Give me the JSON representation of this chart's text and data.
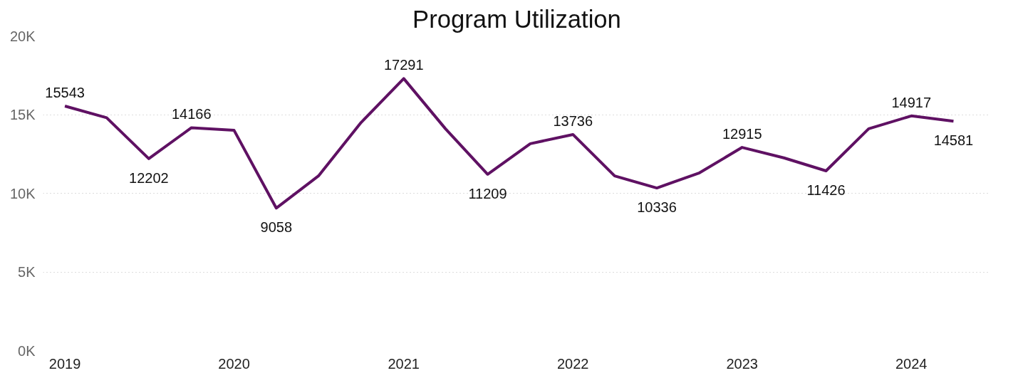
{
  "chart_data": {
    "type": "line",
    "title": "Program Utilization",
    "x": [
      "2019-01",
      "2019-04",
      "2019-07",
      "2019-10",
      "2020-01",
      "2020-04",
      "2020-07",
      "2020-10",
      "2021-01",
      "2021-04",
      "2021-07",
      "2021-10",
      "2022-01",
      "2022-04",
      "2022-07",
      "2022-10",
      "2023-01",
      "2023-04",
      "2023-07",
      "2023-10",
      "2024-01",
      "2024-04"
    ],
    "series": [
      {
        "color": "#5f1163",
        "values": [
          15543,
          14800,
          12202,
          14166,
          14000,
          9058,
          11100,
          14500,
          17291,
          14100,
          11209,
          13150,
          13736,
          11100,
          10336,
          11300,
          12915,
          12250,
          11426,
          14100,
          14917,
          14581
        ],
        "value_labels": [
          "15543",
          null,
          "12202",
          "14166",
          null,
          "9058",
          null,
          null,
          "17291",
          null,
          "11209",
          null,
          "13736",
          null,
          "10336",
          null,
          "12915",
          null,
          "11426",
          null,
          "14917",
          "14581"
        ]
      }
    ],
    "ylim": [
      0,
      20000
    ],
    "yticks": [
      {
        "value": 0,
        "label": "0K"
      },
      {
        "value": 5000,
        "label": "5K"
      },
      {
        "value": 10000,
        "label": "10K"
      },
      {
        "value": 15000,
        "label": "15K"
      },
      {
        "value": 20000,
        "label": "20K"
      }
    ],
    "xlim": [
      "2018-11-15",
      "2024-06-20"
    ],
    "xticks": [
      "2019",
      "2020",
      "2021",
      "2022",
      "2023",
      "2024"
    ],
    "grid": "y",
    "marker": "none",
    "line_style": "solid"
  }
}
